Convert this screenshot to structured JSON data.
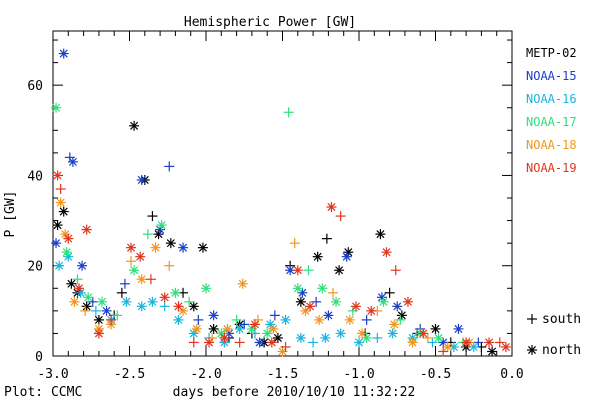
{
  "chart_data": {
    "type": "scatter",
    "title": "Hemispheric Power [GW]",
    "xlabel": "days before 2010/10/10 11:32:22",
    "ylabel": "P [GW]",
    "xlim": [
      -3.0,
      0.0
    ],
    "ylim": [
      0,
      72
    ],
    "x_ticks": [
      "-3.0",
      "-2.5",
      "-2.0",
      "-1.5",
      "-1.0",
      "-0.5",
      "0.0"
    ],
    "y_ticks": [
      "0",
      "20",
      "40",
      "60"
    ],
    "credit": "Plot: CCMC",
    "grid": false,
    "legend_position": "right",
    "markers": [
      {
        "symbol": "+",
        "label": "south"
      },
      {
        "symbol": "*",
        "label": "north"
      }
    ],
    "series": [
      {
        "name": "METP-02",
        "color": "#000000",
        "points": [
          {
            "x": -2.97,
            "y": 29,
            "m": "*"
          },
          {
            "x": -2.93,
            "y": 32,
            "m": "*"
          },
          {
            "x": -2.88,
            "y": 16,
            "m": "*"
          },
          {
            "x": -2.84,
            "y": 14,
            "m": "*"
          },
          {
            "x": -2.78,
            "y": 11,
            "m": "*"
          },
          {
            "x": -2.7,
            "y": 8,
            "m": "*"
          },
          {
            "x": -2.6,
            "y": 9,
            "m": "+"
          },
          {
            "x": -2.55,
            "y": 14,
            "m": "+"
          },
          {
            "x": -2.47,
            "y": 51,
            "m": "*"
          },
          {
            "x": -2.4,
            "y": 39,
            "m": "*"
          },
          {
            "x": -2.35,
            "y": 31,
            "m": "+"
          },
          {
            "x": -2.31,
            "y": 27,
            "m": "*"
          },
          {
            "x": -2.23,
            "y": 25,
            "m": "*"
          },
          {
            "x": -2.15,
            "y": 14,
            "m": "+"
          },
          {
            "x": -2.08,
            "y": 11,
            "m": "*"
          },
          {
            "x": -2.02,
            "y": 24,
            "m": "*"
          },
          {
            "x": -1.95,
            "y": 6,
            "m": "*"
          },
          {
            "x": -1.85,
            "y": 4,
            "m": "+"
          },
          {
            "x": -1.78,
            "y": 7,
            "m": "*"
          },
          {
            "x": -1.7,
            "y": 5,
            "m": "+"
          },
          {
            "x": -1.62,
            "y": 3,
            "m": "*"
          },
          {
            "x": -1.53,
            "y": 4,
            "m": "*"
          },
          {
            "x": -1.45,
            "y": 20,
            "m": "+"
          },
          {
            "x": -1.38,
            "y": 12,
            "m": "*"
          },
          {
            "x": -1.27,
            "y": 22,
            "m": "*"
          },
          {
            "x": -1.21,
            "y": 26,
            "m": "+"
          },
          {
            "x": -1.13,
            "y": 19,
            "m": "*"
          },
          {
            "x": -1.07,
            "y": 23,
            "m": "*"
          },
          {
            "x": -0.96,
            "y": 5,
            "m": "+"
          },
          {
            "x": -0.86,
            "y": 27,
            "m": "*"
          },
          {
            "x": -0.8,
            "y": 14,
            "m": "+"
          },
          {
            "x": -0.72,
            "y": 9,
            "m": "*"
          },
          {
            "x": -0.62,
            "y": 5,
            "m": "+"
          },
          {
            "x": -0.5,
            "y": 6,
            "m": "*"
          },
          {
            "x": -0.4,
            "y": 3,
            "m": "+"
          },
          {
            "x": -0.3,
            "y": 2,
            "m": "*"
          },
          {
            "x": -0.2,
            "y": 2,
            "m": "+"
          },
          {
            "x": -0.13,
            "y": 1,
            "m": "*"
          }
        ]
      },
      {
        "name": "NOAA-15",
        "color": "#1a3fc8",
        "points": [
          {
            "x": -2.98,
            "y": 25,
            "m": "*"
          },
          {
            "x": -2.93,
            "y": 67,
            "m": "*"
          },
          {
            "x": -2.89,
            "y": 44,
            "m": "+"
          },
          {
            "x": -2.87,
            "y": 43,
            "m": "*"
          },
          {
            "x": -2.81,
            "y": 20,
            "m": "*"
          },
          {
            "x": -2.74,
            "y": 12,
            "m": "+"
          },
          {
            "x": -2.65,
            "y": 10,
            "m": "*"
          },
          {
            "x": -2.53,
            "y": 16,
            "m": "+"
          },
          {
            "x": -2.42,
            "y": 39,
            "m": "*"
          },
          {
            "x": -2.3,
            "y": 28,
            "m": "*"
          },
          {
            "x": -2.24,
            "y": 42,
            "m": "+"
          },
          {
            "x": -2.15,
            "y": 24,
            "m": "*"
          },
          {
            "x": -2.05,
            "y": 8,
            "m": "+"
          },
          {
            "x": -1.95,
            "y": 9,
            "m": "*"
          },
          {
            "x": -1.85,
            "y": 5,
            "m": "*"
          },
          {
            "x": -1.75,
            "y": 7,
            "m": "+"
          },
          {
            "x": -1.65,
            "y": 3,
            "m": "*"
          },
          {
            "x": -1.55,
            "y": 9,
            "m": "+"
          },
          {
            "x": -1.45,
            "y": 19,
            "m": "*"
          },
          {
            "x": -1.37,
            "y": 14,
            "m": "*"
          },
          {
            "x": -1.28,
            "y": 12,
            "m": "+"
          },
          {
            "x": -1.2,
            "y": 9,
            "m": "*"
          },
          {
            "x": -1.08,
            "y": 22,
            "m": "*"
          },
          {
            "x": -0.95,
            "y": 8,
            "m": "+"
          },
          {
            "x": -0.85,
            "y": 13,
            "m": "*"
          },
          {
            "x": -0.75,
            "y": 11,
            "m": "*"
          },
          {
            "x": -0.6,
            "y": 6,
            "m": "+"
          },
          {
            "x": -0.45,
            "y": 3,
            "m": "*"
          },
          {
            "x": -0.35,
            "y": 6,
            "m": "*"
          },
          {
            "x": -0.22,
            "y": 3,
            "m": "+"
          }
        ]
      },
      {
        "name": "NOAA-16",
        "color": "#1ab4e0",
        "points": [
          {
            "x": -2.96,
            "y": 20,
            "m": "*"
          },
          {
            "x": -2.9,
            "y": 22,
            "m": "*"
          },
          {
            "x": -2.82,
            "y": 14,
            "m": "*"
          },
          {
            "x": -2.72,
            "y": 10,
            "m": "+"
          },
          {
            "x": -2.62,
            "y": 8,
            "m": "*"
          },
          {
            "x": -2.52,
            "y": 12,
            "m": "*"
          },
          {
            "x": -2.42,
            "y": 11,
            "m": "*"
          },
          {
            "x": -2.35,
            "y": 12,
            "m": "*"
          },
          {
            "x": -2.27,
            "y": 11,
            "m": "+"
          },
          {
            "x": -2.18,
            "y": 8,
            "m": "*"
          },
          {
            "x": -2.08,
            "y": 5,
            "m": "*"
          },
          {
            "x": -1.98,
            "y": 4,
            "m": "+"
          },
          {
            "x": -1.88,
            "y": 3,
            "m": "*"
          },
          {
            "x": -1.78,
            "y": 6,
            "m": "*"
          },
          {
            "x": -1.68,
            "y": 5,
            "m": "+"
          },
          {
            "x": -1.58,
            "y": 7,
            "m": "*"
          },
          {
            "x": -1.48,
            "y": 8,
            "m": "*"
          },
          {
            "x": -1.38,
            "y": 4,
            "m": "*"
          },
          {
            "x": -1.3,
            "y": 3,
            "m": "+"
          },
          {
            "x": -1.22,
            "y": 4,
            "m": "*"
          },
          {
            "x": -1.12,
            "y": 5,
            "m": "*"
          },
          {
            "x": -1.0,
            "y": 3,
            "m": "*"
          },
          {
            "x": -0.88,
            "y": 4,
            "m": "+"
          },
          {
            "x": -0.78,
            "y": 5,
            "m": "*"
          },
          {
            "x": -0.65,
            "y": 4,
            "m": "*"
          },
          {
            "x": -0.52,
            "y": 3,
            "m": "+"
          },
          {
            "x": -0.38,
            "y": 2,
            "m": "*"
          },
          {
            "x": -0.25,
            "y": 2,
            "m": "*"
          }
        ]
      },
      {
        "name": "NOAA-17",
        "color": "#2ee07a",
        "points": [
          {
            "x": -2.98,
            "y": 55,
            "m": "*"
          },
          {
            "x": -2.91,
            "y": 23,
            "m": "*"
          },
          {
            "x": -2.84,
            "y": 17,
            "m": "+"
          },
          {
            "x": -2.77,
            "y": 13,
            "m": "*"
          },
          {
            "x": -2.68,
            "y": 12,
            "m": "*"
          },
          {
            "x": -2.58,
            "y": 9,
            "m": "+"
          },
          {
            "x": -2.47,
            "y": 19,
            "m": "*"
          },
          {
            "x": -2.38,
            "y": 27,
            "m": "+"
          },
          {
            "x": -2.29,
            "y": 29,
            "m": "*"
          },
          {
            "x": -2.2,
            "y": 14,
            "m": "*"
          },
          {
            "x": -2.11,
            "y": 12,
            "m": "+"
          },
          {
            "x": -2.0,
            "y": 15,
            "m": "*"
          },
          {
            "x": -1.9,
            "y": 5,
            "m": "*"
          },
          {
            "x": -1.8,
            "y": 8,
            "m": "+"
          },
          {
            "x": -1.7,
            "y": 6,
            "m": "*"
          },
          {
            "x": -1.6,
            "y": 5,
            "m": "*"
          },
          {
            "x": -1.46,
            "y": 54,
            "m": "+"
          },
          {
            "x": -1.4,
            "y": 15,
            "m": "*"
          },
          {
            "x": -1.33,
            "y": 19,
            "m": "+"
          },
          {
            "x": -1.24,
            "y": 15,
            "m": "*"
          },
          {
            "x": -1.15,
            "y": 12,
            "m": "*"
          },
          {
            "x": -1.04,
            "y": 10,
            "m": "+"
          },
          {
            "x": -0.95,
            "y": 4,
            "m": "*"
          },
          {
            "x": -0.84,
            "y": 12,
            "m": "*"
          },
          {
            "x": -0.73,
            "y": 8,
            "m": "+"
          },
          {
            "x": -0.6,
            "y": 5,
            "m": "*"
          },
          {
            "x": -0.48,
            "y": 4,
            "m": "*"
          },
          {
            "x": -0.32,
            "y": 3,
            "m": "+"
          }
        ]
      },
      {
        "name": "NOAA-18",
        "color": "#f0961e",
        "points": [
          {
            "x": -2.95,
            "y": 34,
            "m": "*"
          },
          {
            "x": -2.92,
            "y": 27,
            "m": "*"
          },
          {
            "x": -2.86,
            "y": 12,
            "m": "*"
          },
          {
            "x": -2.79,
            "y": 10,
            "m": "+"
          },
          {
            "x": -2.7,
            "y": 6,
            "m": "*"
          },
          {
            "x": -2.62,
            "y": 7,
            "m": "*"
          },
          {
            "x": -2.49,
            "y": 21,
            "m": "+"
          },
          {
            "x": -2.42,
            "y": 17,
            "m": "*"
          },
          {
            "x": -2.33,
            "y": 24,
            "m": "*"
          },
          {
            "x": -2.24,
            "y": 20,
            "m": "+"
          },
          {
            "x": -2.15,
            "y": 10,
            "m": "*"
          },
          {
            "x": -2.06,
            "y": 6,
            "m": "*"
          },
          {
            "x": -1.96,
            "y": 4,
            "m": "+"
          },
          {
            "x": -1.86,
            "y": 6,
            "m": "*"
          },
          {
            "x": -1.76,
            "y": 16,
            "m": "*"
          },
          {
            "x": -1.66,
            "y": 8,
            "m": "+"
          },
          {
            "x": -1.56,
            "y": 6,
            "m": "*"
          },
          {
            "x": -1.5,
            "y": 1,
            "m": "*"
          },
          {
            "x": -1.42,
            "y": 25,
            "m": "+"
          },
          {
            "x": -1.35,
            "y": 10,
            "m": "*"
          },
          {
            "x": -1.26,
            "y": 8,
            "m": "*"
          },
          {
            "x": -1.17,
            "y": 14,
            "m": "+"
          },
          {
            "x": -1.06,
            "y": 8,
            "m": "*"
          },
          {
            "x": -0.98,
            "y": 5,
            "m": "*"
          },
          {
            "x": -0.88,
            "y": 10,
            "m": "+"
          },
          {
            "x": -0.77,
            "y": 7,
            "m": "*"
          },
          {
            "x": -0.65,
            "y": 3,
            "m": "*"
          },
          {
            "x": -0.55,
            "y": 4,
            "m": "+"
          },
          {
            "x": -0.42,
            "y": 2,
            "m": "*"
          },
          {
            "x": -0.28,
            "y": 3,
            "m": "*"
          }
        ]
      },
      {
        "name": "NOAA-19",
        "color": "#e0361e",
        "points": [
          {
            "x": -2.97,
            "y": 40,
            "m": "*"
          },
          {
            "x": -2.95,
            "y": 37,
            "m": "+"
          },
          {
            "x": -2.9,
            "y": 26,
            "m": "*"
          },
          {
            "x": -2.83,
            "y": 15,
            "m": "*"
          },
          {
            "x": -2.78,
            "y": 28,
            "m": "*"
          },
          {
            "x": -2.7,
            "y": 5,
            "m": "*"
          },
          {
            "x": -2.62,
            "y": 8,
            "m": "+"
          },
          {
            "x": -2.49,
            "y": 24,
            "m": "*"
          },
          {
            "x": -2.43,
            "y": 22,
            "m": "*"
          },
          {
            "x": -2.36,
            "y": 17,
            "m": "+"
          },
          {
            "x": -2.27,
            "y": 13,
            "m": "*"
          },
          {
            "x": -2.18,
            "y": 11,
            "m": "*"
          },
          {
            "x": -2.08,
            "y": 3,
            "m": "+"
          },
          {
            "x": -1.98,
            "y": 3,
            "m": "*"
          },
          {
            "x": -1.88,
            "y": 4,
            "m": "*"
          },
          {
            "x": -1.78,
            "y": 3,
            "m": "+"
          },
          {
            "x": -1.68,
            "y": 7,
            "m": "*"
          },
          {
            "x": -1.57,
            "y": 3,
            "m": "*"
          },
          {
            "x": -1.48,
            "y": 2,
            "m": "+"
          },
          {
            "x": -1.4,
            "y": 19,
            "m": "*"
          },
          {
            "x": -1.32,
            "y": 11,
            "m": "*"
          },
          {
            "x": -1.18,
            "y": 33,
            "m": "*"
          },
          {
            "x": -1.12,
            "y": 31,
            "m": "+"
          },
          {
            "x": -1.02,
            "y": 11,
            "m": "*"
          },
          {
            "x": -0.92,
            "y": 10,
            "m": "*"
          },
          {
            "x": -0.82,
            "y": 23,
            "m": "*"
          },
          {
            "x": -0.76,
            "y": 19,
            "m": "+"
          },
          {
            "x": -0.68,
            "y": 12,
            "m": "*"
          },
          {
            "x": -0.58,
            "y": 5,
            "m": "*"
          },
          {
            "x": -0.45,
            "y": 1,
            "m": "+"
          },
          {
            "x": -0.3,
            "y": 3,
            "m": "*"
          },
          {
            "x": -0.15,
            "y": 3,
            "m": "*"
          },
          {
            "x": -0.08,
            "y": 3,
            "m": "+"
          },
          {
            "x": -0.04,
            "y": 2,
            "m": "*"
          }
        ]
      }
    ]
  }
}
